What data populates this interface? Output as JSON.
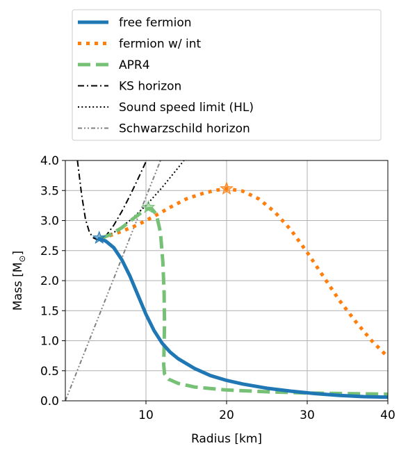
{
  "chart_data": {
    "type": "line",
    "xlabel": "Radius [km]",
    "ylabel": "Mass [M",
    "ylabel_sub": "⊙",
    "ylabel_close": "]",
    "xlim": [
      0,
      40
    ],
    "ylim": [
      0.0,
      4.0
    ],
    "grid": true,
    "legend_position": "above",
    "xticks": [
      10,
      20,
      30,
      40
    ],
    "xtick_labels": [
      "10",
      "20",
      "30",
      "40"
    ],
    "yticks": [
      0.0,
      0.5,
      1.0,
      1.5,
      2.0,
      2.5,
      3.0,
      3.5,
      4.0
    ],
    "ytick_labels": [
      "0.0",
      "0.5",
      "1.0",
      "1.5",
      "2.0",
      "2.5",
      "3.0",
      "3.5",
      "4.0"
    ],
    "series": [
      {
        "name": "free fermion",
        "color": "#1f77b4",
        "style": "solid",
        "x": [
          4.0,
          5.0,
          6.0,
          7.0,
          8.0,
          9.0,
          10.0,
          11.0,
          12.0,
          13.0,
          14.0,
          16.0,
          18.0,
          20.0,
          22.0,
          25.0,
          28.0,
          31.0,
          34.0,
          37.0,
          40.0
        ],
        "y": [
          2.7,
          2.66,
          2.55,
          2.35,
          2.08,
          1.76,
          1.44,
          1.17,
          0.96,
          0.81,
          0.7,
          0.54,
          0.42,
          0.34,
          0.28,
          0.21,
          0.16,
          0.12,
          0.09,
          0.07,
          0.06
        ],
        "star": [
          4.2,
          2.71
        ]
      },
      {
        "name": "fermion w/ int",
        "color": "#ff7f0e",
        "style": "dotted",
        "x": [
          4.5,
          7.0,
          9.0,
          11.0,
          13.0,
          15.0,
          17.0,
          18.5,
          20.0,
          22.0,
          24.0,
          26.0,
          28.0,
          30.0,
          32.0,
          34.0,
          36.0,
          38.0,
          40.0
        ],
        "y": [
          2.7,
          2.82,
          2.93,
          3.07,
          3.22,
          3.36,
          3.45,
          3.5,
          3.53,
          3.49,
          3.36,
          3.14,
          2.84,
          2.47,
          2.07,
          1.67,
          1.32,
          1.0,
          0.73
        ],
        "star": [
          20.0,
          3.53
        ]
      },
      {
        "name": "APR4",
        "color": "#77c177",
        "style": "dashed",
        "x": [
          4.3,
          5.5,
          7.0,
          8.5,
          10.0,
          10.7,
          11.3,
          11.8,
          12.1,
          12.25,
          12.3,
          12.25,
          12.2,
          12.3,
          12.8,
          14.0,
          16.0,
          20.0,
          25.0,
          30.0,
          35.0,
          40.0
        ],
        "y": [
          2.7,
          2.76,
          2.88,
          3.04,
          3.19,
          3.2,
          3.1,
          2.8,
          2.3,
          1.8,
          1.3,
          0.9,
          0.6,
          0.45,
          0.36,
          0.29,
          0.23,
          0.18,
          0.15,
          0.13,
          0.12,
          0.11
        ],
        "star": [
          10.3,
          3.22
        ]
      },
      {
        "name": "KS horizon",
        "color": "#000000",
        "style": "dashdot",
        "x": [
          1.5,
          2.0,
          2.5,
          3.0,
          3.5,
          4.0,
          4.5,
          5.0,
          6.0,
          7.0,
          8.0,
          9.0,
          10.0,
          10.5
        ],
        "y": [
          4.0,
          3.45,
          3.02,
          2.8,
          2.71,
          2.68,
          2.69,
          2.74,
          2.92,
          3.15,
          3.41,
          3.69,
          3.98,
          4.1
        ]
      },
      {
        "name": "Sound speed limit (HL)",
        "color": "#000000",
        "style": "densedot",
        "x": [
          4.0,
          6.0,
          8.0,
          10.0,
          12.0,
          14.0,
          15.0
        ],
        "y": [
          2.68,
          2.8,
          3.0,
          3.25,
          3.55,
          3.88,
          4.05
        ]
      },
      {
        "name": "Schwarzschild horizon",
        "color": "#808080",
        "style": "dashdotdot",
        "x": [
          0.0,
          11.8
        ],
        "y": [
          0.0,
          4.0
        ]
      }
    ]
  }
}
